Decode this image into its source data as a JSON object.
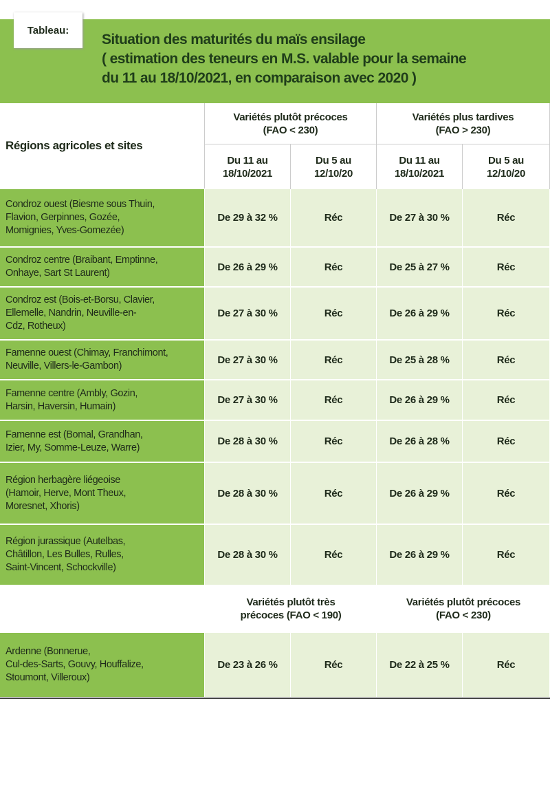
{
  "header": {
    "tag": "Tableau:",
    "title": [
      "Situation des maturités du maïs ensilage",
      "( estimation des teneurs en M.S. valable pour la semaine",
      "du 11 au 18/10/2021, en comparaison avec 2020 )"
    ]
  },
  "table": {
    "top_left": "Régions agricoles et sites",
    "groups": [
      [
        "Variétés plutôt précoces",
        "(FAO < 230)"
      ],
      [
        "Variétés plus tardives",
        "(FAO > 230)"
      ]
    ],
    "subheaders": [
      [
        "Du 11 au",
        "18/10/2021"
      ],
      [
        "Du 5 au",
        "12/10/20"
      ],
      [
        "Du 11 au",
        "18/10/2021"
      ],
      [
        "Du 5 au",
        "12/10/20"
      ]
    ],
    "rows": [
      {
        "region": [
          "Condroz ouest (Biesme sous Thuin,",
          "Flavion, Gerpinnes, Gozée,",
          "Momignies, Yves-Gomezée)"
        ],
        "cells": [
          "De 29 à 32 %",
          "Réc",
          "De 27 à 30 %",
          "Réc"
        ]
      },
      {
        "region": [
          "Condroz centre (Braibant, Emptinne,",
          "Onhaye, Sart St Laurent)"
        ],
        "cells": [
          "De 26 à 29 %",
          "Réc",
          "De 25 à 27 %",
          "Réc"
        ]
      },
      {
        "region": [
          "Condroz est (Bois-et-Borsu, Clavier,",
          "Ellemelle, Nandrin, Neuville-en-",
          "Cdz, Rotheux)"
        ],
        "cells": [
          "De 27 à 30 %",
          "Réc",
          "De 26 à 29 %",
          "Réc"
        ]
      },
      {
        "region": [
          "Famenne ouest (Chimay, Franchimont,",
          "Neuville, Villers-le-Gambon)"
        ],
        "cells": [
          "De 27 à 30 %",
          "Réc",
          "De 25 à 28 %",
          "Réc"
        ]
      },
      {
        "region": [
          "Famenne centre (Ambly, Gozin,",
          "Harsin, Haversin, Humain)"
        ],
        "cells": [
          "De 27 à 30 %",
          "Réc",
          "De 26 à 29 %",
          "Réc"
        ]
      },
      {
        "region": [
          "Famenne est (Bomal, Grandhan,",
          "Izier, My, Somme-Leuze, Warre)"
        ],
        "cells": [
          "De 28 à 30 %",
          "Réc",
          "De 26 à 28 %",
          "Réc"
        ]
      },
      {
        "region": [
          "Région herbagère liégeoise",
          "(Hamoir, Herve, Mont Theux,",
          "Moresnet, Xhoris)"
        ],
        "cells": [
          "De 28 à 30 %",
          "Réc",
          "De 26 à 29 %",
          "Réc"
        ]
      },
      {
        "region": [
          "Région jurassique (Autelbas,",
          "Châtillon, Les Bulles, Rulles,",
          "Saint-Vincent, Schockville)"
        ],
        "cells": [
          "De 28 à 30 %",
          "Réc",
          "De 26 à 29 %",
          "Réc"
        ]
      }
    ],
    "groups2": [
      [
        "Variétés plutôt très",
        "précoces (FAO < 190)"
      ],
      [
        "Variétés plutôt précoces",
        "(FAO < 230)"
      ]
    ],
    "rows2": [
      {
        "region": [
          "Ardenne (Bonnerue,",
          "Cul-des-Sarts, Gouvy, Houffalize,",
          "Stoumont, Villeroux)"
        ],
        "cells": [
          "De 23 à 26 %",
          "Réc",
          "De 22 à 25 %",
          "Réc"
        ]
      }
    ]
  }
}
